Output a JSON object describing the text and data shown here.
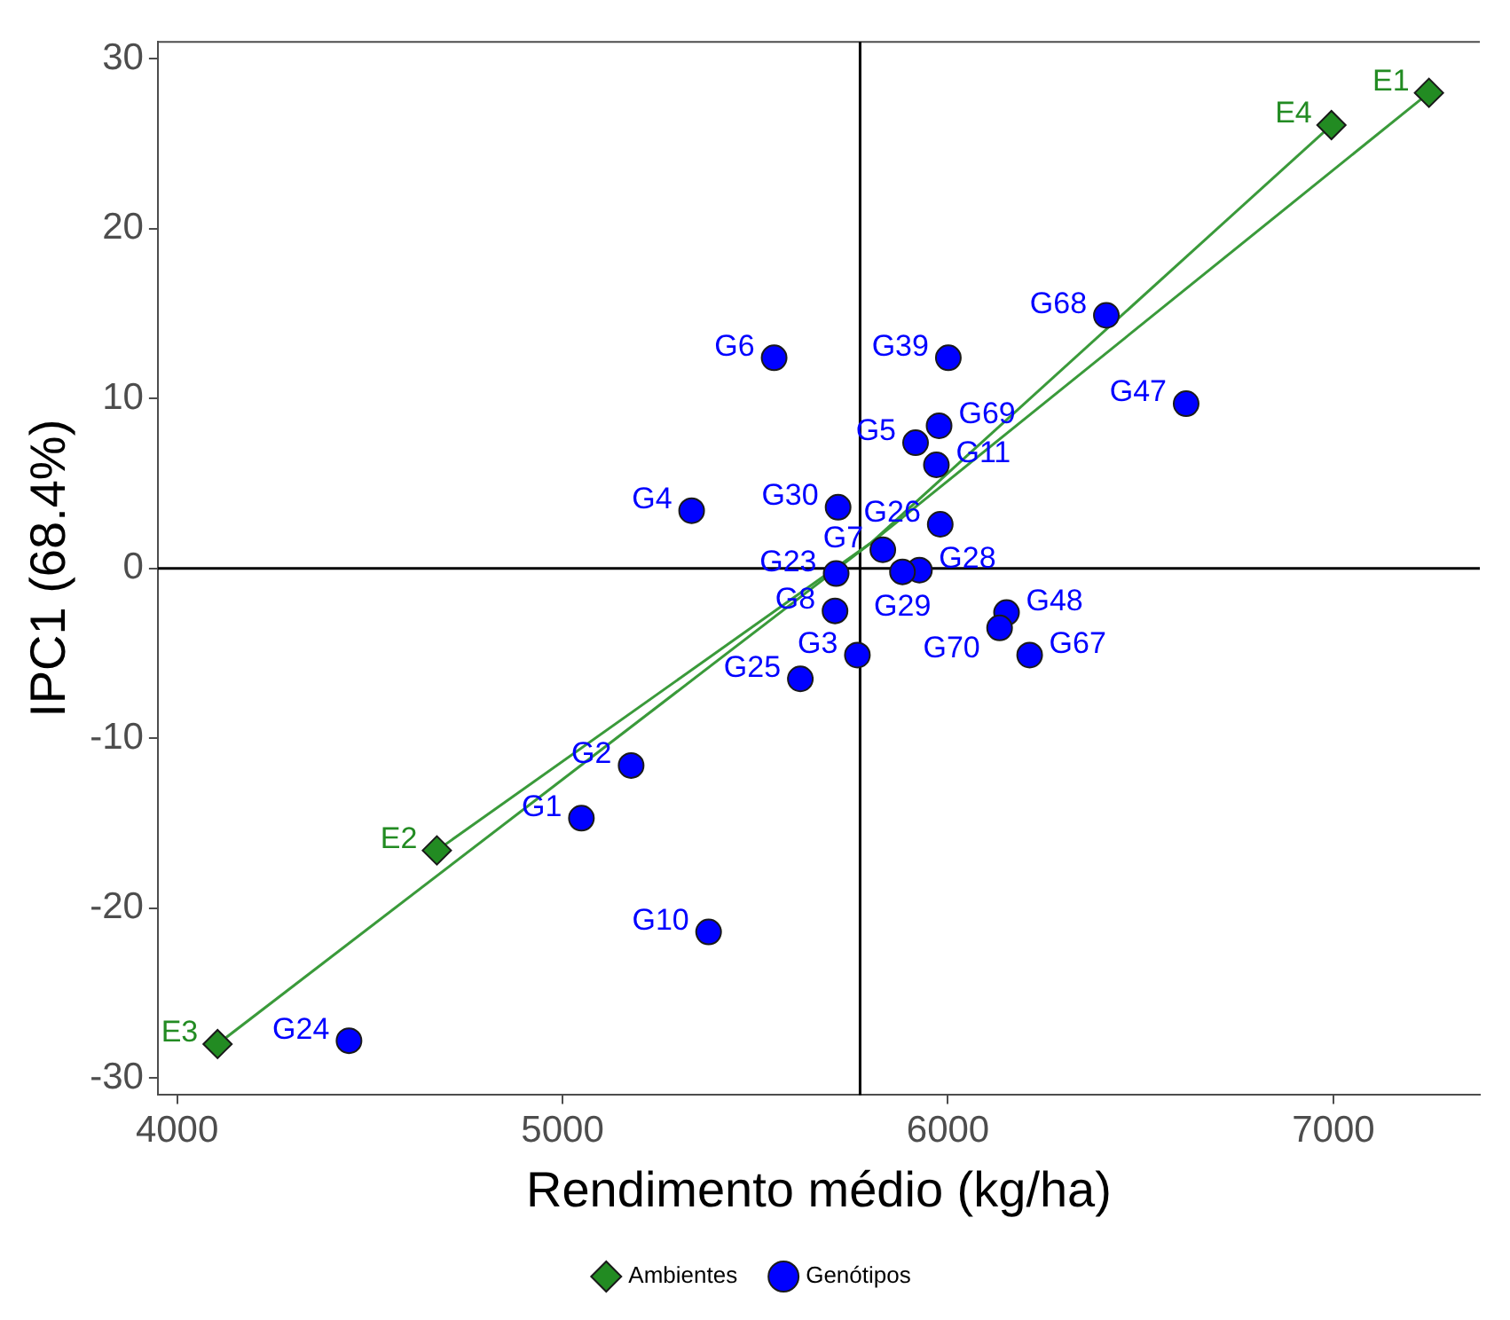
{
  "chart_data": {
    "type": "scatter",
    "xlabel": "Rendimento médio (kg/ha)",
    "ylabel": "IPC1 (68.4%)",
    "xlim": [
      3950,
      7380
    ],
    "ylim": [
      -31,
      31
    ],
    "xticks": [
      4000,
      5000,
      6000,
      7000
    ],
    "yticks": [
      -30,
      -20,
      -10,
      0,
      10,
      20,
      30
    ],
    "grid": false,
    "legend": "bottom",
    "ref_lines": [
      {
        "axis": "x",
        "value": 5772,
        "color": "#000000"
      },
      {
        "axis": "y",
        "value": 0,
        "color": "#000000"
      }
    ],
    "series": [
      {
        "type": "line",
        "color": "#3a9a3a",
        "marker": "none",
        "x": [
          5800,
          7248
        ],
        "values": [
          1.5,
          28.0
        ]
      },
      {
        "type": "line",
        "color": "#3a9a3a",
        "marker": "none",
        "x": [
          5800,
          4674
        ],
        "values": [
          1.5,
          -16.6
        ]
      },
      {
        "type": "line",
        "color": "#3a9a3a",
        "marker": "none",
        "x": [
          5800,
          4105
        ],
        "values": [
          1.5,
          -28.0
        ]
      },
      {
        "type": "line",
        "color": "#3a9a3a",
        "marker": "none",
        "x": [
          5800,
          6995
        ],
        "values": [
          1.5,
          26.1
        ]
      },
      {
        "name": "Ambientes",
        "type": "scatter",
        "color": "#228b22",
        "marker": "diamond",
        "x": [
          7248,
          4674,
          4105,
          6995
        ],
        "values": [
          28.0,
          -16.6,
          -28.0,
          26.1
        ]
      },
      {
        "name": "Genótipos",
        "type": "scatter",
        "color": "#0000ff",
        "marker": "circle",
        "x": [
          5049,
          5178,
          5765,
          5335,
          5916,
          5549,
          5831,
          5707,
          5379,
          5970,
          5710,
          4446,
          5617,
          5980,
          5926,
          5882,
          5715,
          6001,
          6618,
          6152,
          6212,
          6411,
          5977,
          6134
        ],
        "values": [
          -14.7,
          -11.6,
          -5.1,
          3.4,
          7.4,
          12.4,
          1.1,
          -2.5,
          -21.4,
          6.1,
          -0.3,
          -27.8,
          -6.5,
          2.6,
          -0.1,
          -0.2,
          3.6,
          12.4,
          9.7,
          -2.6,
          -5.1,
          14.9,
          8.4,
          -3.5
        ]
      }
    ],
    "annotations": [
      {
        "text": "E1",
        "x": 7248,
        "y": 28.0
      },
      {
        "text": "E2",
        "x": 4674,
        "y": -16.6
      },
      {
        "text": "E3",
        "x": 4105,
        "y": -28.0
      },
      {
        "text": "E4",
        "x": 6995,
        "y": 26.1
      },
      {
        "text": "G1",
        "x": 5049,
        "y": -14.7
      },
      {
        "text": "G2",
        "x": 5178,
        "y": -11.6
      },
      {
        "text": "G3",
        "x": 5765,
        "y": -5.1
      },
      {
        "text": "G4",
        "x": 5335,
        "y": 3.4
      },
      {
        "text": "G5",
        "x": 5916,
        "y": 7.4
      },
      {
        "text": "G6",
        "x": 5549,
        "y": 12.4
      },
      {
        "text": "G7",
        "x": 5831,
        "y": 1.1
      },
      {
        "text": "G8",
        "x": 5707,
        "y": -2.5
      },
      {
        "text": "G10",
        "x": 5379,
        "y": -21.4
      },
      {
        "text": "G11",
        "x": 5970,
        "y": 6.1
      },
      {
        "text": "G23",
        "x": 5710,
        "y": -0.3
      },
      {
        "text": "G24",
        "x": 4446,
        "y": -27.8
      },
      {
        "text": "G25",
        "x": 5617,
        "y": -6.5
      },
      {
        "text": "G26",
        "x": 5980,
        "y": 2.6
      },
      {
        "text": "G28",
        "x": 5926,
        "y": -0.1
      },
      {
        "text": "G29",
        "x": 5882,
        "y": -0.2
      },
      {
        "text": "G30",
        "x": 5715,
        "y": 3.6
      },
      {
        "text": "G39",
        "x": 6001,
        "y": 12.4
      },
      {
        "text": "G47",
        "x": 6618,
        "y": 9.7
      },
      {
        "text": "G48",
        "x": 6152,
        "y": -2.6
      },
      {
        "text": "G67",
        "x": 6212,
        "y": -5.1
      },
      {
        "text": "G68",
        "x": 6411,
        "y": 14.9
      },
      {
        "text": "G69",
        "x": 5977,
        "y": 8.4
      },
      {
        "text": "G70",
        "x": 6134,
        "y": -3.5
      }
    ]
  }
}
